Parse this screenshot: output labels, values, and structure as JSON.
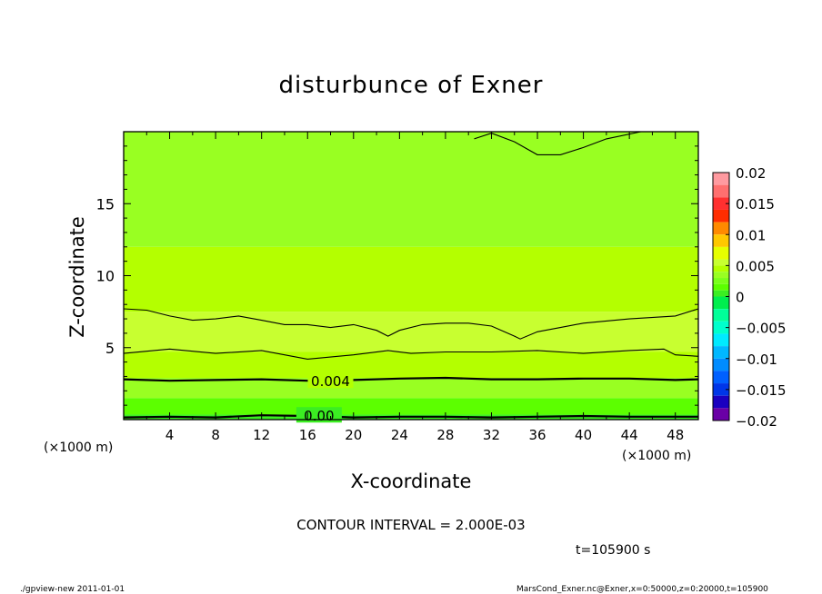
{
  "chart_data": {
    "type": "heatmap",
    "title": "disturbunce of Exner",
    "xlabel": "X-coordinate",
    "ylabel": "Z-coordinate",
    "x_unit": "(×1000 m)",
    "y_unit": "(×1000 m)",
    "xlim": [
      0,
      50
    ],
    "ylim": [
      0,
      20
    ],
    "x_ticks": [
      4,
      8,
      12,
      16,
      20,
      24,
      28,
      32,
      36,
      40,
      44,
      48
    ],
    "y_ticks": [
      5,
      10,
      15
    ],
    "contour_interval_label": "CONTOUR INTERVAL = 2.000E-03",
    "contour_labels": [
      {
        "text": "0.004",
        "x": 18,
        "z": 2.7
      },
      {
        "text": "0.00",
        "x": 17,
        "z": 0.3
      }
    ],
    "fill_bands": [
      {
        "z_from": 0.0,
        "z_to": 0.35,
        "value": 0.0
      },
      {
        "z_from": 0.35,
        "z_to": 1.5,
        "value": 0.001
      },
      {
        "z_from": 1.5,
        "z_to": 2.9,
        "value": 0.003
      },
      {
        "z_from": 2.9,
        "z_to": 4.7,
        "value": 0.0045
      },
      {
        "z_from": 4.7,
        "z_to": 7.5,
        "value": 0.0055
      },
      {
        "z_from": 7.5,
        "z_to": 12.0,
        "value": 0.0048
      },
      {
        "z_from": 12.0,
        "z_to": 20.0,
        "value": 0.0035
      }
    ],
    "contours": [
      {
        "value": 0.0,
        "bold": true,
        "points": [
          [
            0,
            0.15
          ],
          [
            4,
            0.2
          ],
          [
            8,
            0.15
          ],
          [
            12,
            0.3
          ],
          [
            16,
            0.25
          ],
          [
            20,
            0.15
          ],
          [
            24,
            0.2
          ],
          [
            28,
            0.2
          ],
          [
            32,
            0.15
          ],
          [
            36,
            0.2
          ],
          [
            40,
            0.25
          ],
          [
            44,
            0.2
          ],
          [
            50,
            0.2
          ]
        ]
      },
      {
        "value": 0.004,
        "bold": true,
        "points": [
          [
            0,
            2.8
          ],
          [
            4,
            2.7
          ],
          [
            8,
            2.75
          ],
          [
            12,
            2.8
          ],
          [
            16,
            2.7
          ],
          [
            20,
            2.75
          ],
          [
            24,
            2.85
          ],
          [
            28,
            2.9
          ],
          [
            32,
            2.8
          ],
          [
            36,
            2.8
          ],
          [
            40,
            2.85
          ],
          [
            44,
            2.85
          ],
          [
            48,
            2.75
          ],
          [
            50,
            2.8
          ]
        ]
      },
      {
        "value": 0.006,
        "bold": false,
        "points": [
          [
            0,
            4.6
          ],
          [
            4,
            4.9
          ],
          [
            8,
            4.6
          ],
          [
            12,
            4.8
          ],
          [
            16,
            4.2
          ],
          [
            20,
            4.5
          ],
          [
            23,
            4.8
          ],
          [
            25,
            4.6
          ],
          [
            28,
            4.7
          ],
          [
            32,
            4.7
          ],
          [
            36,
            4.8
          ],
          [
            40,
            4.6
          ],
          [
            44,
            4.8
          ],
          [
            47,
            4.9
          ],
          [
            48,
            4.5
          ],
          [
            50,
            4.4
          ]
        ]
      },
      {
        "value": 0.006,
        "bold": false,
        "points": [
          [
            0,
            7.7
          ],
          [
            2,
            7.6
          ],
          [
            4,
            7.2
          ],
          [
            6,
            6.9
          ],
          [
            8,
            7.0
          ],
          [
            10,
            7.2
          ],
          [
            12,
            6.9
          ],
          [
            14,
            6.6
          ],
          [
            16,
            6.6
          ],
          [
            18,
            6.4
          ],
          [
            20,
            6.6
          ],
          [
            22,
            6.2
          ],
          [
            23,
            5.8
          ],
          [
            24,
            6.2
          ],
          [
            26,
            6.6
          ],
          [
            28,
            6.7
          ],
          [
            30,
            6.7
          ],
          [
            32,
            6.5
          ],
          [
            34,
            5.8
          ],
          [
            34.5,
            5.6
          ],
          [
            36,
            6.1
          ],
          [
            38,
            6.4
          ],
          [
            40,
            6.7
          ],
          [
            44,
            7.0
          ],
          [
            48,
            7.2
          ],
          [
            50,
            7.7
          ]
        ]
      },
      {
        "value": 0.002,
        "bold": false,
        "points": [
          [
            30.5,
            19.5
          ],
          [
            32,
            19.9
          ],
          [
            34,
            19.3
          ],
          [
            36,
            18.4
          ],
          [
            38,
            18.4
          ],
          [
            40,
            18.9
          ],
          [
            42,
            19.5
          ],
          [
            45,
            20.0
          ]
        ]
      }
    ],
    "colorbar": {
      "ticks": [
        0.02,
        0.015,
        0.01,
        0.005,
        0,
        -0.005,
        -0.01,
        -0.015,
        -0.02
      ],
      "tick_labels": [
        "0.02",
        "0.015",
        "0.01",
        "0.005",
        "0",
        "−0.005",
        "−0.01",
        "−0.015",
        "−0.02"
      ],
      "levels_high_to_low": [
        {
          "range": [
            0.018,
            0.02
          ],
          "color": "#ff9aa0"
        },
        {
          "range": [
            0.016,
            0.018
          ],
          "color": "#ff6f6f"
        },
        {
          "range": [
            0.014,
            0.016
          ],
          "color": "#ff3030"
        },
        {
          "range": [
            0.012,
            0.014
          ],
          "color": "#ff2d00"
        },
        {
          "range": [
            0.01,
            0.012
          ],
          "color": "#ff8a00"
        },
        {
          "range": [
            0.008,
            0.01
          ],
          "color": "#ffc800"
        },
        {
          "range": [
            0.006,
            0.008
          ],
          "color": "#e6ff00"
        },
        {
          "range": [
            0.005,
            0.006
          ],
          "color": "#c8ff30"
        },
        {
          "range": [
            0.004,
            0.005
          ],
          "color": "#b4ff00"
        },
        {
          "range": [
            0.003,
            0.004
          ],
          "color": "#99ff22"
        },
        {
          "range": [
            0.002,
            0.003
          ],
          "color": "#7aff1a"
        },
        {
          "range": [
            0.001,
            0.002
          ],
          "color": "#5cff00"
        },
        {
          "range": [
            0.0,
            0.001
          ],
          "color": "#3bee22"
        },
        {
          "range": [
            -0.002,
            0.0
          ],
          "color": "#00ee4e"
        },
        {
          "range": [
            -0.004,
            -0.002
          ],
          "color": "#00ff99"
        },
        {
          "range": [
            -0.006,
            -0.004
          ],
          "color": "#00ffcc"
        },
        {
          "range": [
            -0.008,
            -0.006
          ],
          "color": "#00eaff"
        },
        {
          "range": [
            -0.01,
            -0.008
          ],
          "color": "#00b8ff"
        },
        {
          "range": [
            -0.012,
            -0.01
          ],
          "color": "#008cff"
        },
        {
          "range": [
            -0.014,
            -0.012
          ],
          "color": "#0060ff"
        },
        {
          "range": [
            -0.016,
            -0.014
          ],
          "color": "#0036e8"
        },
        {
          "range": [
            -0.018,
            -0.016
          ],
          "color": "#1a00c0"
        },
        {
          "range": [
            -0.02,
            -0.018
          ],
          "color": "#6a00a6"
        }
      ]
    }
  },
  "time_label": "t=105900 s",
  "footer_left": "./gpview-new   2011-01-01",
  "footer_right": "MarsCond_Exner.nc@Exner,x=0:50000,z=0:20000,t=105900"
}
